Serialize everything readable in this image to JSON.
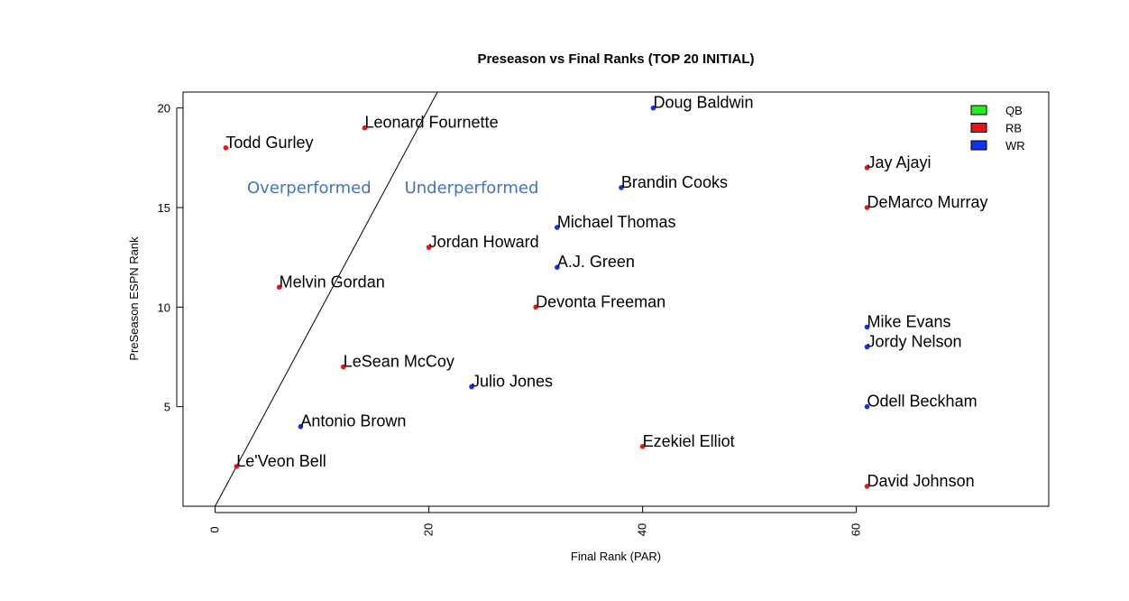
{
  "chart_data": {
    "type": "scatter",
    "title": "Preseason vs Final Ranks (TOP 20 INITIAL)",
    "xlabel": "Final Rank (PAR)",
    "ylabel": "PreSeason ESPN Rank",
    "xlim": [
      -3,
      78
    ],
    "ylim": [
      0,
      20.8
    ],
    "xticks": [
      0,
      20,
      40,
      60
    ],
    "yticks": [
      5,
      10,
      15,
      20
    ],
    "grid": false,
    "legend_position": "top-right",
    "legend": [
      {
        "name": "QB",
        "color": "#22ee22"
      },
      {
        "name": "RB",
        "color": "#ee1111"
      },
      {
        "name": "WR",
        "color": "#1133ee"
      }
    ],
    "reference_line": {
      "x1": 0,
      "y1": 0,
      "x2": 21,
      "y2": 21
    },
    "annotations": [
      {
        "text": "Overperformed",
        "x": 8.8,
        "y": 16.0,
        "color": "#4472c4"
      },
      {
        "text": "Underperformed",
        "x": 24.0,
        "y": 16.0,
        "color": "#4472c4"
      }
    ],
    "points": [
      {
        "label": "Doug Baldwin",
        "x": 41,
        "y": 20,
        "position": "WR"
      },
      {
        "label": "Leonard Fournette",
        "x": 14,
        "y": 19,
        "position": "RB"
      },
      {
        "label": "Todd Gurley",
        "x": 1,
        "y": 18,
        "position": "RB"
      },
      {
        "label": "Jay Ajayi",
        "x": 61,
        "y": 17,
        "position": "RB"
      },
      {
        "label": "Brandin Cooks",
        "x": 38,
        "y": 16,
        "position": "WR"
      },
      {
        "label": "DeMarco Murray",
        "x": 61,
        "y": 15,
        "position": "RB"
      },
      {
        "label": "Michael Thomas",
        "x": 32,
        "y": 14,
        "position": "WR"
      },
      {
        "label": "Jordan Howard",
        "x": 20,
        "y": 13,
        "position": "RB"
      },
      {
        "label": "A.J. Green",
        "x": 32,
        "y": 12,
        "position": "WR"
      },
      {
        "label": "Melvin Gordan",
        "x": 6,
        "y": 11,
        "position": "RB"
      },
      {
        "label": "Devonta Freeman",
        "x": 30,
        "y": 10,
        "position": "RB"
      },
      {
        "label": "Mike Evans",
        "x": 61,
        "y": 9,
        "position": "WR"
      },
      {
        "label": "Jordy Nelson",
        "x": 61,
        "y": 8,
        "position": "WR"
      },
      {
        "label": "LeSean McCoy",
        "x": 12,
        "y": 7,
        "position": "RB"
      },
      {
        "label": "Julio Jones",
        "x": 24,
        "y": 6,
        "position": "WR"
      },
      {
        "label": "Odell Beckham",
        "x": 61,
        "y": 5,
        "position": "WR"
      },
      {
        "label": "Antonio Brown",
        "x": 8,
        "y": 4,
        "position": "WR"
      },
      {
        "label": "Ezekiel Elliot",
        "x": 40,
        "y": 3,
        "position": "RB"
      },
      {
        "label": "Le'Veon Bell",
        "x": 2,
        "y": 2,
        "position": "RB"
      },
      {
        "label": "David Johnson",
        "x": 61,
        "y": 1,
        "position": "RB"
      }
    ]
  }
}
